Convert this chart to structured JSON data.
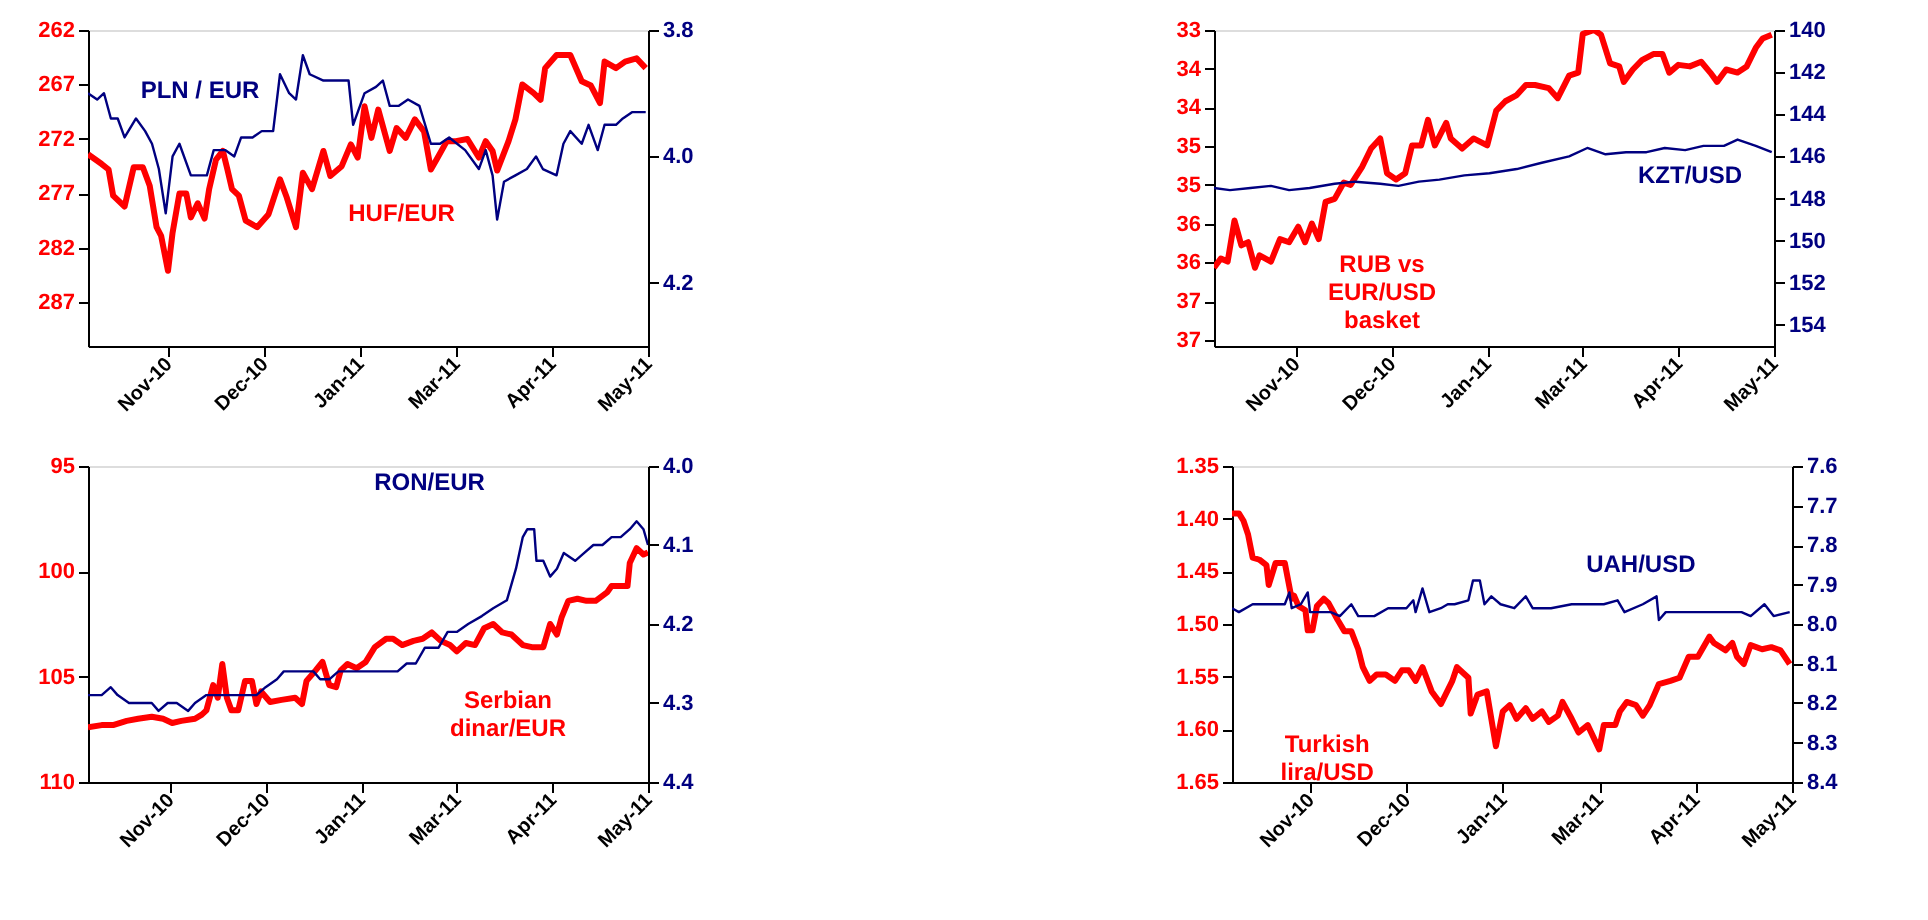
{
  "chart_data": [
    {
      "type": "line",
      "xlim": [
        "2010-09-27",
        "2011-05-30"
      ],
      "xticks": [
        {
          "value": "2010-11-01",
          "label": "Nov-10"
        },
        {
          "value": "2010-12-13",
          "label": "Dec-10"
        },
        {
          "value": "2011-01-24",
          "label": "Jan-11"
        },
        {
          "value": "2011-03-07",
          "label": "Mar-11"
        },
        {
          "value": "2011-04-18",
          "label": "Apr-11"
        },
        {
          "value": "2011-05-30",
          "label": "May-11"
        }
      ],
      "ylim": [
        291,
        262
      ],
      "yticks": [
        262,
        267,
        272,
        277,
        282,
        287
      ],
      "y2lim": [
        4.3,
        3.8
      ],
      "y2ticks": [
        {
          "value": 3.8,
          "label": "3.8"
        },
        {
          "value": 4.0,
          "label": "4.0"
        },
        {
          "value": 4.2,
          "label": "4.2"
        }
      ],
      "series": [
        {
          "name": "HUF/EUR",
          "color": "#ff0000",
          "x": [
            "2010-09-27",
            "2010-10-03",
            "2010-10-06",
            "2010-10-08",
            "2010-10-13",
            "2010-10-17",
            "2010-10-21",
            "2010-10-24",
            "2010-10-27",
            "2010-10-29",
            "2010-11-01",
            "2010-11-03",
            "2010-11-06",
            "2010-11-09",
            "2010-11-11",
            "2010-11-14",
            "2010-11-17",
            "2010-11-19",
            "2010-11-22",
            "2010-11-25",
            "2010-11-27",
            "2010-11-29",
            "2010-12-02",
            "2010-12-05",
            "2010-12-10",
            "2010-12-15",
            "2010-12-20",
            "2010-12-23",
            "2010-12-27",
            "2010-12-30",
            "2011-01-03",
            "2011-01-08",
            "2011-01-11",
            "2011-01-16",
            "2011-01-20",
            "2011-01-23",
            "2011-01-26",
            "2011-01-29",
            "2011-02-01",
            "2011-02-06",
            "2011-02-09",
            "2011-02-13",
            "2011-02-17",
            "2011-02-21",
            "2011-02-24",
            "2011-02-27",
            "2011-03-03",
            "2011-03-07",
            "2011-03-12",
            "2011-03-17",
            "2011-03-20",
            "2011-03-23",
            "2011-03-25",
            "2011-03-30",
            "2011-04-02",
            "2011-04-05",
            "2011-04-10",
            "2011-04-13",
            "2011-04-15",
            "2011-04-20",
            "2011-04-26",
            "2011-05-01",
            "2011-05-05",
            "2011-05-09",
            "2011-05-11",
            "2011-05-16",
            "2011-05-20",
            "2011-05-25",
            "2011-05-29"
          ],
          "values": [
            273.4,
            274.3,
            274.8,
            277.2,
            278.2,
            274.6,
            274.6,
            276.3,
            280.1,
            280.9,
            284.1,
            280.6,
            277.0,
            277.0,
            279.2,
            277.9,
            279.3,
            276.6,
            273.9,
            273.1,
            274.8,
            276.6,
            277.2,
            279.5,
            280.1,
            278.9,
            275.7,
            277.4,
            280.1,
            275.1,
            276.6,
            273.1,
            275.4,
            274.5,
            272.5,
            273.7,
            269.0,
            271.9,
            269.3,
            273.1,
            271.0,
            271.9,
            270.2,
            271.3,
            274.8,
            273.7,
            272.2,
            272.2,
            272.0,
            273.7,
            272.2,
            273.1,
            274.9,
            272.2,
            270.2,
            267.0,
            267.8,
            268.4,
            265.5,
            264.3,
            264.3,
            266.7,
            267.1,
            268.7,
            264.9,
            265.5,
            264.9,
            264.6,
            265.5
          ]
        },
        {
          "name": "PLN / EUR",
          "color": "#000080",
          "axis": "y2",
          "x": [
            "2010-09-27",
            "2010-10-01",
            "2010-10-04",
            "2010-10-07",
            "2010-10-10",
            "2010-10-13",
            "2010-10-18",
            "2010-10-22",
            "2010-10-25",
            "2010-10-28",
            "2010-10-31",
            "2010-11-03",
            "2010-11-06",
            "2010-11-11",
            "2010-11-14",
            "2010-11-18",
            "2010-11-21",
            "2010-11-26",
            "2010-11-30",
            "2010-12-03",
            "2010-12-08",
            "2010-12-12",
            "2010-12-17",
            "2010-12-20",
            "2010-12-24",
            "2010-12-27",
            "2010-12-30",
            "2011-01-02",
            "2011-01-08",
            "2011-01-14",
            "2011-01-19",
            "2011-01-21",
            "2011-01-26",
            "2011-01-31",
            "2011-02-03",
            "2011-02-06",
            "2011-02-10",
            "2011-02-14",
            "2011-02-19",
            "2011-02-24",
            "2011-02-28",
            "2011-03-04",
            "2011-03-11",
            "2011-03-17",
            "2011-03-20",
            "2011-03-23",
            "2011-03-25",
            "2011-03-28",
            "2011-04-02",
            "2011-04-07",
            "2011-04-11",
            "2011-04-14",
            "2011-04-20",
            "2011-04-23",
            "2011-04-26",
            "2011-05-01",
            "2011-05-04",
            "2011-05-08",
            "2011-05-11",
            "2011-05-16",
            "2011-05-19",
            "2011-05-23",
            "2011-05-29"
          ],
          "values": [
            3.9,
            3.91,
            3.9,
            3.94,
            3.94,
            3.97,
            3.94,
            3.96,
            3.98,
            4.02,
            4.09,
            4.0,
            3.98,
            4.03,
            4.03,
            4.03,
            3.99,
            3.99,
            4.0,
            3.97,
            3.97,
            3.96,
            3.96,
            3.87,
            3.9,
            3.91,
            3.84,
            3.87,
            3.88,
            3.88,
            3.88,
            3.95,
            3.9,
            3.89,
            3.88,
            3.92,
            3.92,
            3.91,
            3.92,
            3.98,
            3.98,
            3.97,
            3.99,
            4.02,
            3.99,
            4.03,
            4.1,
            4.04,
            4.03,
            4.02,
            4.0,
            4.02,
            4.03,
            3.98,
            3.96,
            3.98,
            3.95,
            3.99,
            3.95,
            3.95,
            3.94,
            3.93,
            3.93
          ]
        }
      ]
    },
    {
      "type": "line",
      "xlim": [
        "2010-09-26",
        "2011-05-30"
      ],
      "xticks": [
        {
          "value": "2010-11-01",
          "label": "Nov-10"
        },
        {
          "value": "2010-12-13",
          "label": "Dec-10"
        },
        {
          "value": "2011-01-24",
          "label": "Jan-11"
        },
        {
          "value": "2011-03-07",
          "label": "Mar-11"
        },
        {
          "value": "2011-04-18",
          "label": "Apr-11"
        },
        {
          "value": "2011-05-30",
          "label": "May-11"
        }
      ],
      "ylim": [
        37.08,
        33
      ],
      "yticks": [
        33,
        {
          "value": 33.5,
          "label": "34"
        },
        34,
        {
          "value": 34.5,
          "label": "35"
        },
        35,
        {
          "value": 35.5,
          "label": "36"
        },
        36,
        {
          "value": 36.5,
          "label": "37"
        },
        37
      ],
      "y2lim": [
        155,
        140
      ],
      "y2ticks": [
        140,
        142,
        144,
        146,
        148,
        150,
        152,
        154
      ],
      "series": [
        {
          "name": "RUB vs EUR/USD basket",
          "color": "#ff0000",
          "x": [
            "2010-09-26",
            "2010-09-29",
            "2010-10-02",
            "2010-10-05",
            "2010-10-08",
            "2010-10-11",
            "2010-10-14",
            "2010-10-16",
            "2010-10-21",
            "2010-10-25",
            "2010-10-29",
            "2010-11-02",
            "2010-11-05",
            "2010-11-08",
            "2010-11-11",
            "2010-11-14",
            "2010-11-18",
            "2010-11-22",
            "2010-11-25",
            "2010-11-30",
            "2010-12-04",
            "2010-12-08",
            "2010-12-11",
            "2010-12-15",
            "2010-12-19",
            "2010-12-22",
            "2010-12-26",
            "2010-12-29",
            "2011-01-01",
            "2011-01-06",
            "2011-01-08",
            "2011-01-13",
            "2011-01-18",
            "2011-01-24",
            "2011-01-28",
            "2011-02-01",
            "2011-02-06",
            "2011-02-10",
            "2011-02-14",
            "2011-02-20",
            "2011-02-24",
            "2011-03-01",
            "2011-03-05",
            "2011-03-07",
            "2011-03-12",
            "2011-03-15",
            "2011-03-19",
            "2011-03-23",
            "2011-03-25",
            "2011-03-29",
            "2011-04-02",
            "2011-04-07",
            "2011-04-11",
            "2011-04-14",
            "2011-04-18",
            "2011-04-23",
            "2011-04-28",
            "2011-05-02",
            "2011-05-05",
            "2011-05-09",
            "2011-05-14",
            "2011-05-18",
            "2011-05-22",
            "2011-05-25",
            "2011-05-29"
          ],
          "values": [
            36.07,
            35.95,
            35.99,
            35.46,
            35.78,
            35.74,
            36.07,
            35.91,
            35.99,
            35.7,
            35.74,
            35.54,
            35.74,
            35.5,
            35.7,
            35.22,
            35.18,
            34.97,
            35.0,
            34.77,
            34.53,
            34.4,
            34.85,
            34.93,
            34.85,
            34.49,
            34.49,
            34.16,
            34.49,
            34.2,
            34.4,
            34.53,
            34.4,
            34.49,
            34.04,
            33.92,
            33.84,
            33.71,
            33.71,
            33.75,
            33.88,
            33.59,
            33.55,
            33.05,
            33.0,
            33.06,
            33.43,
            33.47,
            33.67,
            33.51,
            33.39,
            33.31,
            33.31,
            33.55,
            33.45,
            33.47,
            33.41,
            33.55,
            33.67,
            33.51,
            33.55,
            33.47,
            33.23,
            33.11,
            33.06
          ]
        },
        {
          "name": "KZT/USD",
          "color": "#000080",
          "axis": "y2",
          "x": [
            "2010-09-26",
            "2010-10-03",
            "2010-10-12",
            "2010-10-21",
            "2010-10-29",
            "2010-11-07",
            "2010-11-18",
            "2010-11-27",
            "2010-12-08",
            "2010-12-16",
            "2010-12-25",
            "2011-01-03",
            "2011-01-14",
            "2011-01-25",
            "2011-02-06",
            "2011-02-17",
            "2011-03-01",
            "2011-03-09",
            "2011-03-17",
            "2011-03-26",
            "2011-04-04",
            "2011-04-12",
            "2011-04-21",
            "2011-04-29",
            "2011-05-08",
            "2011-05-14",
            "2011-05-22",
            "2011-05-29"
          ],
          "values": [
            147.5,
            147.6,
            147.5,
            147.4,
            147.6,
            147.5,
            147.3,
            147.2,
            147.3,
            147.4,
            147.2,
            147.1,
            146.9,
            146.8,
            146.6,
            146.3,
            146.0,
            145.6,
            145.9,
            145.8,
            145.8,
            145.6,
            145.7,
            145.5,
            145.5,
            145.2,
            145.5,
            145.8
          ]
        }
      ]
    },
    {
      "type": "line",
      "xlim": [
        "2010-09-26",
        "2011-05-30"
      ],
      "xticks": [
        {
          "value": "2010-11-01",
          "label": "Nov-10"
        },
        {
          "value": "2010-12-13",
          "label": "Dec-10"
        },
        {
          "value": "2011-01-24",
          "label": "Jan-11"
        },
        {
          "value": "2011-03-07",
          "label": "Mar-11"
        },
        {
          "value": "2011-04-18",
          "label": "Apr-11"
        },
        {
          "value": "2011-05-30",
          "label": "May-11"
        }
      ],
      "ylim": [
        110,
        95
      ],
      "yticks": [
        95,
        100,
        105,
        110
      ],
      "y2lim": [
        4.4,
        4.0
      ],
      "y2ticks": [
        {
          "value": 4.0,
          "label": "4.0"
        },
        4.1,
        4.2,
        4.3,
        4.4
      ],
      "series": [
        {
          "name": "Serbian dinar/EUR",
          "color": "#ff0000",
          "x": [
            "2010-09-26",
            "2010-10-02",
            "2010-10-07",
            "2010-10-13",
            "2010-10-18",
            "2010-10-24",
            "2010-10-29",
            "2010-11-02",
            "2010-11-06",
            "2010-11-12",
            "2010-11-15",
            "2010-11-17",
            "2010-11-20",
            "2010-11-22",
            "2010-11-24",
            "2010-11-26",
            "2010-11-28",
            "2010-12-01",
            "2010-12-04",
            "2010-12-07",
            "2010-12-09",
            "2010-12-11",
            "2010-12-15",
            "2010-12-20",
            "2010-12-26",
            "2010-12-29",
            "2010-12-31",
            "2011-01-04",
            "2011-01-07",
            "2011-01-10",
            "2011-01-13",
            "2011-01-15",
            "2011-01-18",
            "2011-01-22",
            "2011-01-26",
            "2011-01-30",
            "2011-02-04",
            "2011-02-07",
            "2011-02-11",
            "2011-02-16",
            "2011-02-20",
            "2011-02-24",
            "2011-02-28",
            "2011-03-04",
            "2011-03-07",
            "2011-03-11",
            "2011-03-15",
            "2011-03-19",
            "2011-03-23",
            "2011-03-27",
            "2011-03-31",
            "2011-04-05",
            "2011-04-09",
            "2011-04-14",
            "2011-04-17",
            "2011-04-20",
            "2011-04-22",
            "2011-04-25",
            "2011-04-29",
            "2011-05-03",
            "2011-05-07",
            "2011-05-12",
            "2011-05-14",
            "2011-05-18",
            "2011-05-21",
            "2011-05-22",
            "2011-05-25",
            "2011-05-28",
            "2011-05-30"
          ],
          "values": [
            107.4,
            107.3,
            107.3,
            107.1,
            107.0,
            106.9,
            107.0,
            107.2,
            107.1,
            107.0,
            106.8,
            106.6,
            105.4,
            106.0,
            104.4,
            106.0,
            106.6,
            106.6,
            105.2,
            105.2,
            106.3,
            105.7,
            106.2,
            106.1,
            106.0,
            106.3,
            105.2,
            104.7,
            104.3,
            105.4,
            105.5,
            104.7,
            104.4,
            104.6,
            104.3,
            103.6,
            103.2,
            103.2,
            103.5,
            103.3,
            103.2,
            102.9,
            103.3,
            103.5,
            103.8,
            103.4,
            103.5,
            102.7,
            102.5,
            102.9,
            103.0,
            103.5,
            103.6,
            103.6,
            102.5,
            103.0,
            102.2,
            101.4,
            101.3,
            101.4,
            101.4,
            101.0,
            100.7,
            100.7,
            100.7,
            99.6,
            98.9,
            99.2,
            99.1
          ]
        },
        {
          "name": "RON/EUR",
          "color": "#000080",
          "axis": "y2",
          "x": [
            "2010-09-26",
            "2010-10-02",
            "2010-10-06",
            "2010-10-09",
            "2010-10-14",
            "2010-10-20",
            "2010-10-24",
            "2010-10-27",
            "2010-10-31",
            "2010-11-04",
            "2010-11-09",
            "2010-11-12",
            "2010-11-17",
            "2010-11-23",
            "2010-11-28",
            "2010-12-04",
            "2010-12-09",
            "2010-12-13",
            "2010-12-18",
            "2010-12-21",
            "2010-12-26",
            "2010-12-30",
            "2011-01-03",
            "2011-01-06",
            "2011-01-10",
            "2011-01-14",
            "2011-01-19",
            "2011-01-25",
            "2011-01-30",
            "2011-02-05",
            "2011-02-09",
            "2011-02-13",
            "2011-02-17",
            "2011-02-21",
            "2011-02-27",
            "2011-03-03",
            "2011-03-07",
            "2011-03-12",
            "2011-03-18",
            "2011-03-23",
            "2011-03-29",
            "2011-04-02",
            "2011-04-05",
            "2011-04-07",
            "2011-04-10",
            "2011-04-11",
            "2011-04-14",
            "2011-04-17",
            "2011-04-20",
            "2011-04-23",
            "2011-04-28",
            "2011-05-02",
            "2011-05-06",
            "2011-05-10",
            "2011-05-14",
            "2011-05-18",
            "2011-05-22",
            "2011-05-25",
            "2011-05-28",
            "2011-05-30"
          ],
          "values": [
            4.29,
            4.29,
            4.28,
            4.29,
            4.3,
            4.3,
            4.3,
            4.31,
            4.3,
            4.3,
            4.31,
            4.3,
            4.29,
            4.29,
            4.29,
            4.29,
            4.29,
            4.28,
            4.27,
            4.26,
            4.26,
            4.26,
            4.26,
            4.27,
            4.27,
            4.26,
            4.26,
            4.26,
            4.26,
            4.26,
            4.26,
            4.25,
            4.25,
            4.23,
            4.23,
            4.21,
            4.21,
            4.2,
            4.19,
            4.18,
            4.17,
            4.13,
            4.09,
            4.08,
            4.08,
            4.12,
            4.12,
            4.14,
            4.13,
            4.11,
            4.12,
            4.11,
            4.1,
            4.1,
            4.09,
            4.09,
            4.08,
            4.07,
            4.08,
            4.1
          ]
        }
      ]
    },
    {
      "type": "line",
      "xlim": [
        "2010-09-28",
        "2011-05-30"
      ],
      "xticks": [
        {
          "value": "2010-11-01",
          "label": "Nov-10"
        },
        {
          "value": "2010-12-13",
          "label": "Dec-10"
        },
        {
          "value": "2011-01-24",
          "label": "Jan-11"
        },
        {
          "value": "2011-03-07",
          "label": "Mar-11"
        },
        {
          "value": "2011-04-18",
          "label": "Apr-11"
        },
        {
          "value": "2011-05-30",
          "label": "May-11"
        }
      ],
      "ylim": [
        1.65,
        1.35
      ],
      "yticks": [
        1.35,
        {
          "value": 1.4,
          "label": "1.40"
        },
        1.45,
        {
          "value": 1.5,
          "label": "1.50"
        },
        1.55,
        {
          "value": 1.6,
          "label": "1.60"
        },
        1.65
      ],
      "y2lim": [
        8.4,
        7.6
      ],
      "y2ticks": [
        7.6,
        7.7,
        7.8,
        7.9,
        {
          "value": 8.0,
          "label": "8.0"
        },
        8.1,
        8.2,
        8.3,
        8.4
      ],
      "series": [
        {
          "name": "Turkish lira/USD",
          "color": "#ff0000",
          "x": [
            "2010-09-28",
            "2010-10-01",
            "2010-10-03",
            "2010-10-05",
            "2010-10-07",
            "2010-10-10",
            "2010-10-13",
            "2010-10-14",
            "2010-10-17",
            "2010-10-21",
            "2010-10-24",
            "2010-10-25",
            "2010-10-27",
            "2010-10-30",
            "2010-10-31",
            "2010-11-02",
            "2010-11-04",
            "2010-11-07",
            "2010-11-09",
            "2010-11-13",
            "2010-11-16",
            "2010-11-19",
            "2010-11-22",
            "2010-11-24",
            "2010-11-27",
            "2010-11-30",
            "2010-12-04",
            "2010-12-08",
            "2010-12-11",
            "2010-12-14",
            "2010-12-17",
            "2010-12-20",
            "2010-12-24",
            "2010-12-28",
            "2011-01-02",
            "2011-01-04",
            "2011-01-09",
            "2011-01-10",
            "2011-01-13",
            "2011-01-17",
            "2011-01-21",
            "2011-01-24",
            "2011-01-27",
            "2011-01-30",
            "2011-02-03",
            "2011-02-06",
            "2011-02-10",
            "2011-02-13",
            "2011-02-17",
            "2011-02-19",
            "2011-02-23",
            "2011-02-26",
            "2011-03-02",
            "2011-03-07",
            "2011-03-09",
            "2011-03-14",
            "2011-03-16",
            "2011-03-19",
            "2011-03-23",
            "2011-03-26",
            "2011-03-29",
            "2011-04-02",
            "2011-04-07",
            "2011-04-11",
            "2011-04-15",
            "2011-04-19",
            "2011-04-24",
            "2011-04-26",
            "2011-05-01",
            "2011-05-04",
            "2011-05-06",
            "2011-05-09",
            "2011-05-12",
            "2011-05-17",
            "2011-05-21",
            "2011-05-25",
            "2011-05-29"
          ],
          "values": [
            1.395,
            1.395,
            1.402,
            1.415,
            1.437,
            1.439,
            1.444,
            1.463,
            1.442,
            1.442,
            1.476,
            1.473,
            1.483,
            1.487,
            1.506,
            1.506,
            1.483,
            1.476,
            1.48,
            1.496,
            1.507,
            1.507,
            1.524,
            1.541,
            1.554,
            1.548,
            1.548,
            1.554,
            1.544,
            1.544,
            1.554,
            1.541,
            1.564,
            1.576,
            1.554,
            1.541,
            1.551,
            1.585,
            1.567,
            1.564,
            1.616,
            1.583,
            1.577,
            1.59,
            1.58,
            1.59,
            1.583,
            1.593,
            1.587,
            1.574,
            1.59,
            1.603,
            1.596,
            1.619,
            1.596,
            1.596,
            1.583,
            1.574,
            1.577,
            1.587,
            1.577,
            1.557,
            1.554,
            1.551,
            1.531,
            1.531,
            1.512,
            1.518,
            1.525,
            1.518,
            1.531,
            1.538,
            1.52,
            1.524,
            1.522,
            1.525,
            1.538
          ]
        },
        {
          "name": "UAH/USD",
          "color": "#000080",
          "axis": "y2",
          "x": [
            "2010-09-28",
            "2010-10-01",
            "2010-10-07",
            "2010-10-16",
            "2010-10-21",
            "2010-10-23",
            "2010-10-24",
            "2010-10-28",
            "2010-10-31",
            "2010-11-01",
            "2010-11-10",
            "2010-11-14",
            "2010-11-19",
            "2010-11-22",
            "2010-11-29",
            "2010-12-05",
            "2010-12-13",
            "2010-12-16",
            "2010-12-17",
            "2010-12-20",
            "2010-12-23",
            "2010-12-28",
            "2010-12-31",
            "2011-01-03",
            "2011-01-09",
            "2011-01-11",
            "2011-01-14",
            "2011-01-16",
            "2011-01-19",
            "2011-01-23",
            "2011-01-29",
            "2011-02-03",
            "2011-02-06",
            "2011-02-14",
            "2011-02-23",
            "2011-03-04",
            "2011-03-09",
            "2011-03-15",
            "2011-03-18",
            "2011-03-26",
            "2011-04-01",
            "2011-04-02",
            "2011-04-05",
            "2011-04-15",
            "2011-04-24",
            "2011-05-02",
            "2011-05-08",
            "2011-05-12",
            "2011-05-18",
            "2011-05-22",
            "2011-05-29"
          ],
          "values": [
            7.96,
            7.97,
            7.95,
            7.95,
            7.95,
            7.92,
            7.96,
            7.95,
            7.92,
            7.97,
            7.97,
            7.98,
            7.95,
            7.98,
            7.98,
            7.96,
            7.96,
            7.94,
            7.97,
            7.91,
            7.97,
            7.96,
            7.95,
            7.95,
            7.94,
            7.89,
            7.89,
            7.95,
            7.93,
            7.95,
            7.96,
            7.93,
            7.96,
            7.96,
            7.95,
            7.95,
            7.95,
            7.94,
            7.97,
            7.95,
            7.93,
            7.99,
            7.97,
            7.97,
            7.97,
            7.97,
            7.97,
            7.98,
            7.95,
            7.98,
            7.97
          ]
        }
      ]
    }
  ]
}
